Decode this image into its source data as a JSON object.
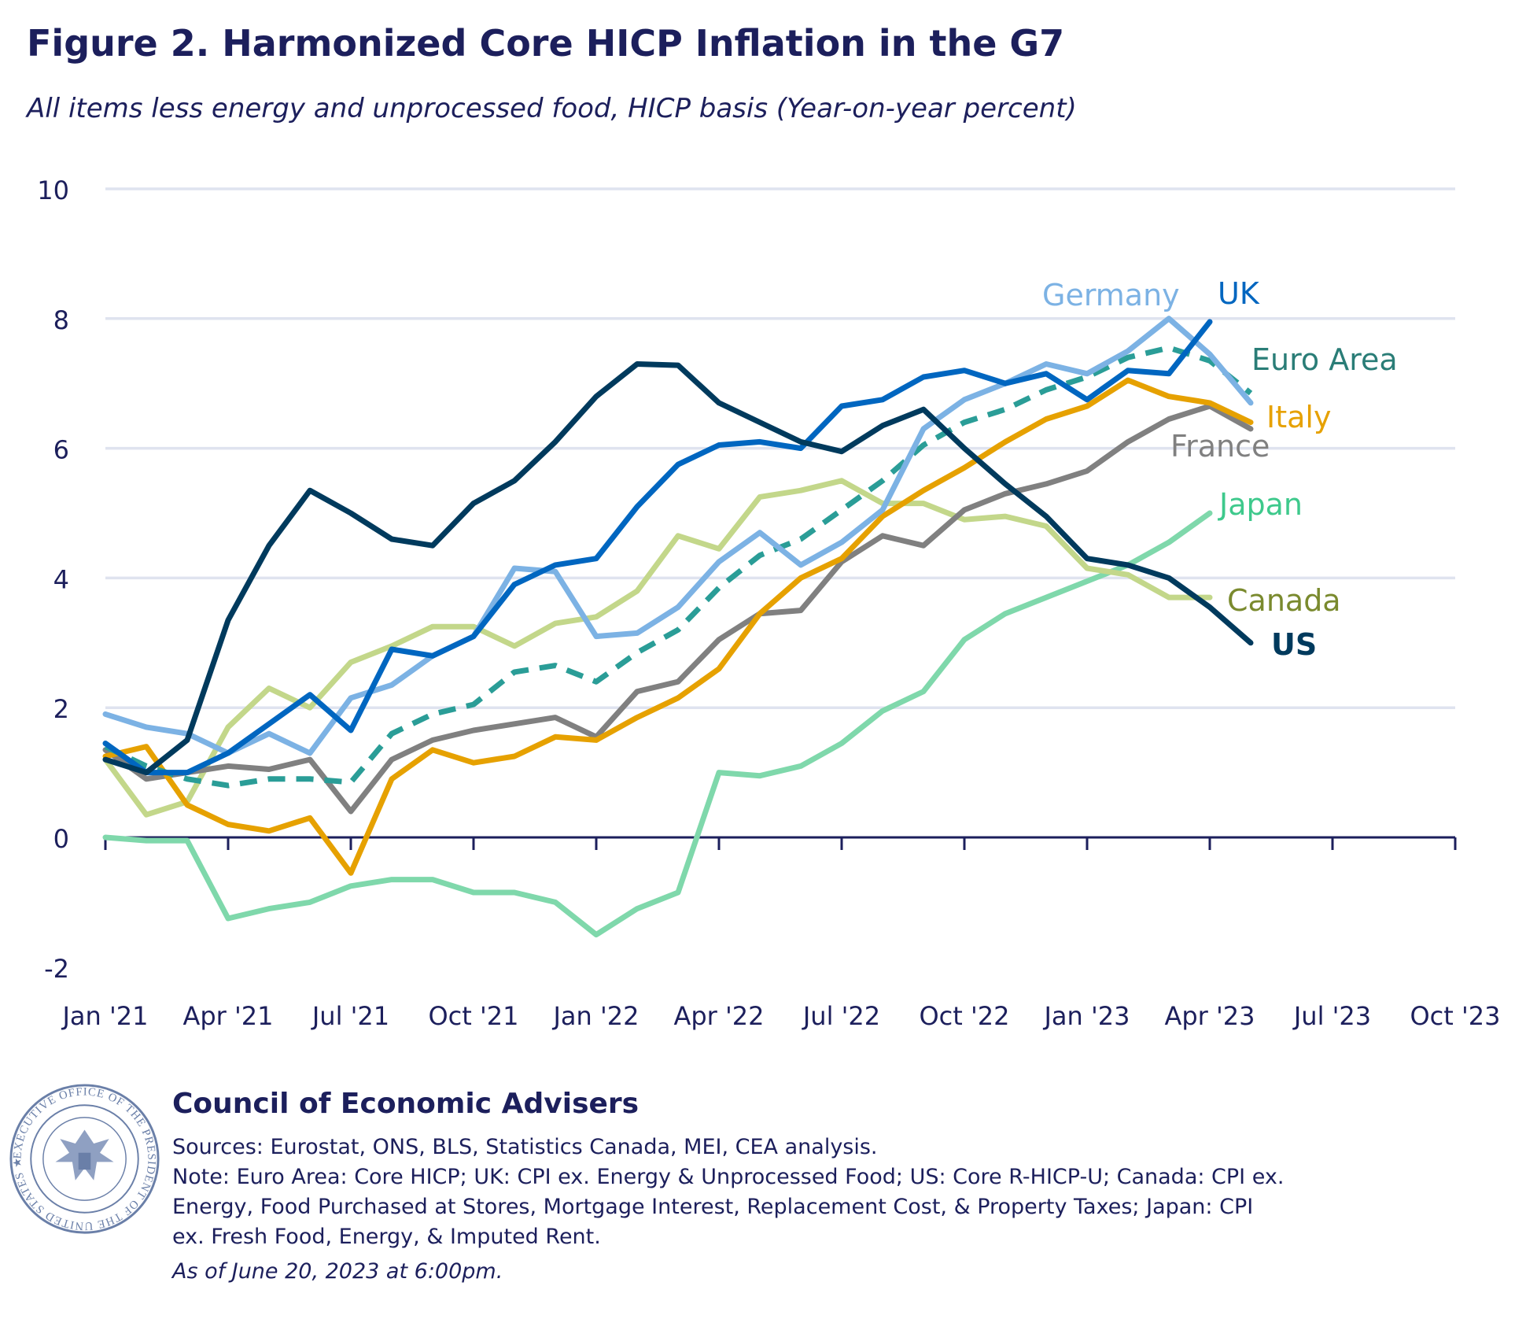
{
  "title": "Figure 2. Harmonized Core HICP Inflation in the G7",
  "subtitle": "All items less energy and unprocessed food, HICP basis (Year-on-year percent)",
  "footer": {
    "organization": "Council of Economic Advisers",
    "sources": "Sources: Eurostat, ONS, BLS, Statistics Canada, MEI, CEA analysis.",
    "note_lines": [
      "Note: Euro Area: Core HICP; UK: CPI ex. Energy & Unprocessed Food; US: Core R-HICP-U; Canada: CPI ex.",
      "Energy, Food Purchased at Stores, Mortgage Interest, Replacement Cost, & Property Taxes; Japan: CPI",
      "ex. Fresh Food, Energy, & Imputed Rent."
    ],
    "as_of": "As of June 20, 2023 at 6:00pm.",
    "seal_text": "EXECUTIVE OFFICE OF THE PRESIDENT OF THE UNITED STATES · COUNCIL OF ECONOMIC ADVISERS"
  },
  "chart_data": {
    "type": "line",
    "title": "Figure 2. Harmonized Core HICP Inflation in the G7",
    "subtitle": "All items less energy and unprocessed food, HICP basis (Year-on-year percent)",
    "xlabel": "",
    "ylabel": "",
    "ylim": [
      -2,
      10
    ],
    "yticks": [
      10,
      8,
      6,
      4,
      2,
      0,
      -2
    ],
    "xlim": [
      "2021-01",
      "2023-10"
    ],
    "xtick_labels": [
      "Jan '21",
      "Apr '21",
      "Jul '21",
      "Oct '21",
      "Jan '22",
      "Apr '22",
      "Jul '22",
      "Oct '22",
      "Jan '23",
      "Apr '23",
      "Jul '23",
      "Oct '23"
    ],
    "x_start": "2021-01",
    "x_frequency": "monthly",
    "grid": "horizontal",
    "legend": "direct labels at line ends",
    "series": [
      {
        "name": "Japan",
        "color": "#7fd8ab",
        "label_color": "#3ec98c",
        "dashed": false,
        "values": [
          0.0,
          -0.05,
          -0.05,
          -1.25,
          -1.1,
          -1.0,
          -0.75,
          -0.65,
          -0.65,
          -0.85,
          -0.85,
          -1.0,
          -1.5,
          -1.1,
          -0.85,
          1.0,
          0.95,
          1.1,
          1.45,
          1.95,
          2.25,
          3.05,
          3.45,
          3.7,
          3.95,
          4.2,
          4.55,
          5.0
        ]
      },
      {
        "name": "Canada",
        "color": "#c3d78a",
        "label_color": "#7a8a2e",
        "dashed": false,
        "values": [
          1.2,
          0.35,
          0.55,
          1.7,
          2.3,
          2.0,
          2.7,
          2.95,
          3.25,
          3.25,
          2.95,
          3.3,
          3.4,
          3.8,
          4.65,
          4.45,
          5.25,
          5.35,
          5.5,
          5.15,
          5.15,
          4.9,
          4.95,
          4.8,
          4.15,
          4.05,
          3.7,
          3.7
        ]
      },
      {
        "name": "France",
        "color": "#808080",
        "label_color": "#808080",
        "dashed": false,
        "values": [
          1.35,
          0.9,
          1.0,
          1.1,
          1.05,
          1.2,
          0.4,
          1.2,
          1.5,
          1.65,
          1.75,
          1.85,
          1.55,
          2.25,
          2.4,
          3.05,
          3.45,
          3.5,
          4.25,
          4.65,
          4.5,
          5.05,
          5.3,
          5.45,
          5.65,
          6.1,
          6.45,
          6.65,
          6.3
        ]
      },
      {
        "name": "Italy",
        "color": "#e6a100",
        "label_color": "#e6a100",
        "dashed": false,
        "values": [
          1.25,
          1.4,
          0.5,
          0.2,
          0.1,
          0.3,
          -0.55,
          0.9,
          1.35,
          1.15,
          1.25,
          1.55,
          1.5,
          1.85,
          2.15,
          2.6,
          3.45,
          4.0,
          4.3,
          4.95,
          5.35,
          5.7,
          6.1,
          6.45,
          6.65,
          7.05,
          6.8,
          6.7,
          6.4
        ]
      },
      {
        "name": "Euro Area",
        "color": "#2a9d97",
        "label_color": "#2a7d77",
        "dashed": true,
        "values": [
          1.4,
          1.1,
          0.9,
          0.8,
          0.9,
          0.9,
          0.85,
          1.6,
          1.9,
          2.05,
          2.55,
          2.65,
          2.4,
          2.85,
          3.2,
          3.85,
          4.35,
          4.6,
          5.05,
          5.5,
          6.05,
          6.4,
          6.6,
          6.9,
          7.1,
          7.4,
          7.55,
          7.35,
          6.85
        ]
      },
      {
        "name": "Germany",
        "color": "#7cb2e4",
        "label_color": "#7cb2e4",
        "dashed": false,
        "values": [
          1.9,
          1.7,
          1.6,
          1.3,
          1.6,
          1.3,
          2.15,
          2.35,
          2.8,
          3.1,
          4.15,
          4.1,
          3.1,
          3.15,
          3.55,
          4.25,
          4.7,
          4.2,
          4.55,
          5.05,
          6.3,
          6.75,
          7.0,
          7.3,
          7.15,
          7.5,
          8.0,
          7.45,
          6.7
        ]
      },
      {
        "name": "UK",
        "color": "#0066c0",
        "label_color": "#0066c0",
        "dashed": false,
        "values": [
          1.45,
          1.0,
          1.0,
          1.3,
          1.75,
          2.2,
          1.65,
          2.9,
          2.8,
          3.1,
          3.9,
          4.2,
          4.3,
          5.1,
          5.75,
          6.05,
          6.1,
          6.0,
          6.65,
          6.75,
          7.1,
          7.2,
          7.0,
          7.15,
          6.75,
          7.2,
          7.15,
          7.95
        ]
      },
      {
        "name": "US",
        "color": "#003a5d",
        "label_color": "#003a5d",
        "dashed": false,
        "bold_label": true,
        "values": [
          1.2,
          1.0,
          1.5,
          3.35,
          4.5,
          5.35,
          5.0,
          4.6,
          4.5,
          5.15,
          5.5,
          6.1,
          6.8,
          7.3,
          7.28,
          6.7,
          6.4,
          6.1,
          5.95,
          6.35,
          6.6,
          6.0,
          5.45,
          4.95,
          4.3,
          4.2,
          4.0,
          3.55,
          3.0
        ]
      }
    ]
  }
}
